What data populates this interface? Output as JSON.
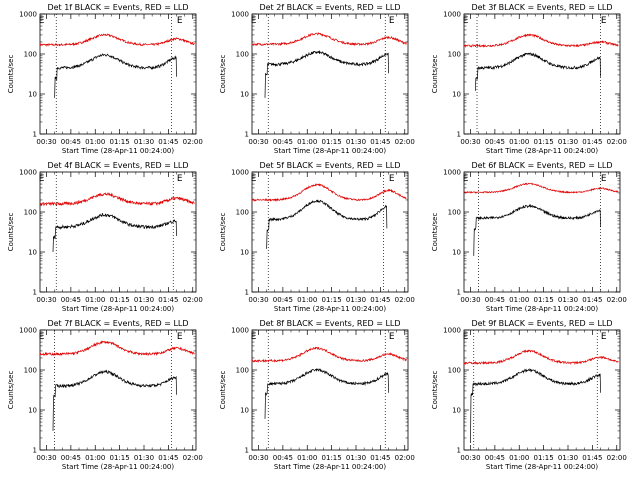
{
  "chart_data": {
    "type": "line",
    "xlabel": "Start Time (28-Apr-11 00:24:00)",
    "ylabel": "Counts/sec",
    "yscale": "log",
    "ylim": [
      1,
      1000
    ],
    "yticks": [
      1,
      10,
      100,
      1000
    ],
    "xlim": [
      26,
      122
    ],
    "xticks": [
      30,
      45,
      60,
      75,
      90,
      105,
      120
    ],
    "xtick_labels": [
      "00:30",
      "00:45",
      "01:00",
      "01:15",
      "01:30",
      "01:45",
      "02:00"
    ],
    "flag_label": "E",
    "series_colors": {
      "events": "#000000",
      "lld": "#e00000"
    },
    "panels": [
      {
        "title": "Det 1f BLACK = Events, RED = LLD",
        "event_lines": [
          36,
          107
        ],
        "flags": [
          27,
          112
        ],
        "lld": {
          "start": 26,
          "end": 121,
          "base": 170,
          "p1": 300,
          "p2": 240,
          "noise": 0.06
        },
        "events": {
          "start": 35,
          "end": 110,
          "dip": 8,
          "base": 45,
          "p1": 95,
          "p2": 80,
          "noise": 0.08
        }
      },
      {
        "title": "Det 2f BLACK = Events, RED = LLD",
        "event_lines": [
          36,
          108
        ],
        "flags": [
          27,
          112
        ],
        "lld": {
          "start": 26,
          "end": 121,
          "base": 175,
          "p1": 320,
          "p2": 260,
          "noise": 0.06
        },
        "events": {
          "start": 34,
          "end": 110,
          "dip": 8,
          "base": 55,
          "p1": 110,
          "p2": 100,
          "noise": 0.08
        }
      },
      {
        "title": "Det 3f BLACK = Events, RED = LLD",
        "event_lines": [
          34,
          110
        ],
        "flags": [
          27,
          112
        ],
        "lld": {
          "start": 26,
          "end": 121,
          "base": 160,
          "p1": 300,
          "p2": 200,
          "noise": 0.06
        },
        "events": {
          "start": 33,
          "end": 110,
          "dip": 12,
          "base": 45,
          "p1": 100,
          "p2": 80,
          "noise": 0.08
        }
      },
      {
        "title": "Det 4f BLACK = Events, RED = LLD",
        "event_lines": [
          36,
          108
        ],
        "flags": [
          27,
          112
        ],
        "lld": {
          "start": 26,
          "end": 121,
          "base": 160,
          "p1": 280,
          "p2": 220,
          "noise": 0.09
        },
        "events": {
          "start": 34,
          "end": 110,
          "dip": 10,
          "base": 42,
          "p1": 85,
          "p2": 60,
          "noise": 0.09
        }
      },
      {
        "title": "Det 5f BLACK = Events, RED = LLD",
        "event_lines": [
          36,
          107
        ],
        "flags": [
          27,
          112
        ],
        "lld": {
          "start": 26,
          "end": 121,
          "base": 200,
          "p1": 480,
          "p2": 350,
          "noise": 0.05
        },
        "events": {
          "start": 35,
          "end": 109,
          "dip": 12,
          "base": 65,
          "p1": 190,
          "p2": 140,
          "noise": 0.07
        }
      },
      {
        "title": "Det 6f BLACK = Events, RED = LLD",
        "event_lines": [
          35,
          110
        ],
        "flags": [
          27,
          112
        ],
        "lld": {
          "start": 26,
          "end": 121,
          "base": 310,
          "p1": 510,
          "p2": 390,
          "noise": 0.04
        },
        "events": {
          "start": 32,
          "end": 110,
          "dip": 8,
          "base": 70,
          "p1": 140,
          "p2": 110,
          "noise": 0.07
        }
      },
      {
        "title": "Det 7f BLACK = Events, RED = LLD",
        "event_lines": [
          35,
          107
        ],
        "flags": [
          27,
          112
        ],
        "lld": {
          "start": 26,
          "end": 121,
          "base": 250,
          "p1": 500,
          "p2": 350,
          "noise": 0.07
        },
        "events": {
          "start": 34,
          "end": 110,
          "dip": 3,
          "base": 40,
          "p1": 90,
          "p2": 65,
          "noise": 0.08
        }
      },
      {
        "title": "Det 8f BLACK = Events, RED = LLD",
        "event_lines": [
          36,
          108
        ],
        "flags": [
          27,
          112
        ],
        "lld": {
          "start": 26,
          "end": 121,
          "base": 170,
          "p1": 350,
          "p2": 250,
          "noise": 0.06
        },
        "events": {
          "start": 34,
          "end": 110,
          "dip": 6,
          "base": 45,
          "p1": 100,
          "p2": 80,
          "noise": 0.08
        }
      },
      {
        "title": "Det 9f BLACK = Events, RED = LLD",
        "event_lines": [
          32,
          108
        ],
        "flags": [
          27,
          112
        ],
        "lld": {
          "start": 26,
          "end": 121,
          "base": 150,
          "p1": 300,
          "p2": 210,
          "noise": 0.06
        },
        "events": {
          "start": 30,
          "end": 110,
          "dip": 1.5,
          "base": 45,
          "p1": 100,
          "p2": 75,
          "noise": 0.08
        }
      }
    ]
  }
}
